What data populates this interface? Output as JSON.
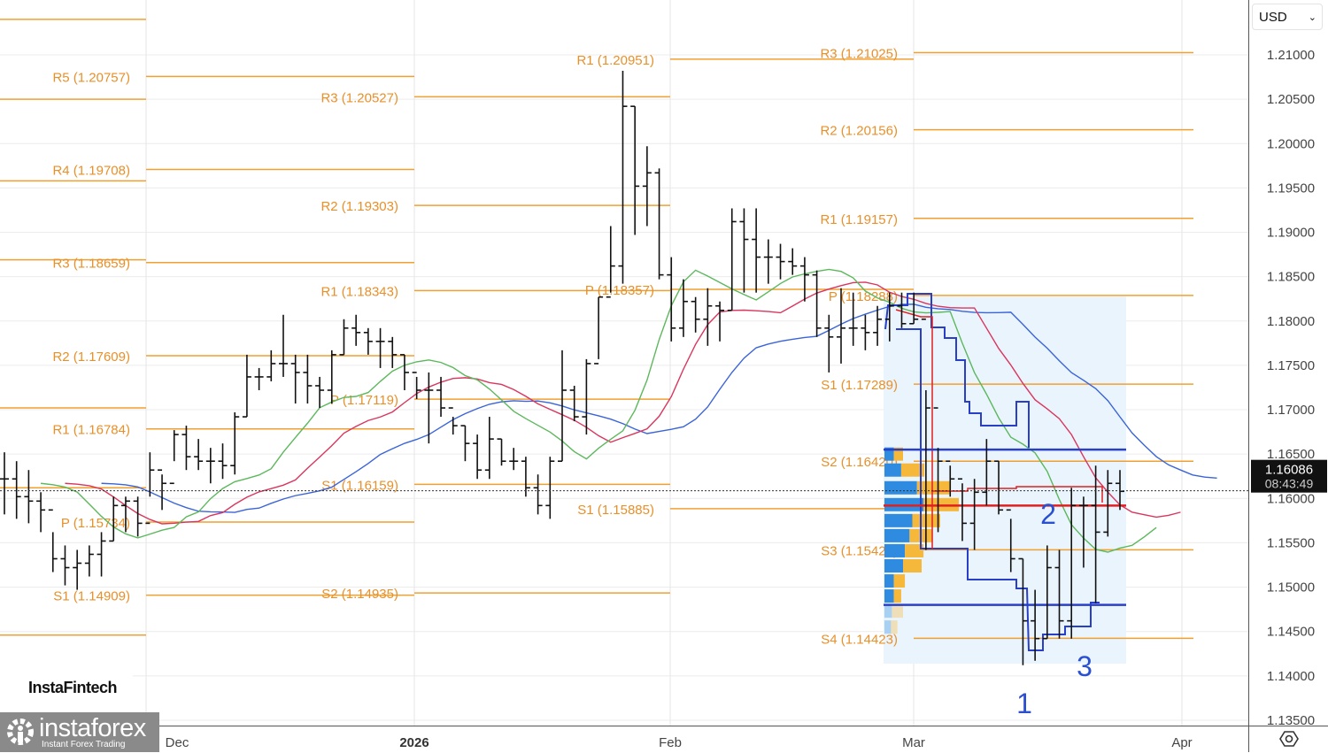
{
  "header": {
    "currency": "USD"
  },
  "colors": {
    "pivot": "#f0a030",
    "bars": "#111111",
    "lips": "#5cb85c",
    "teeth": "#d9365e",
    "jaw": "#3a64d8",
    "channel": "#2a3fc8",
    "poc": "#e02020",
    "vp_blue": "#2f8be0",
    "vp_orange": "#f5b83a",
    "box": "#eaf4fd"
  },
  "logos": {
    "fintech": "InstaFintech",
    "instaforex": "instaforex",
    "instaforex_tag": "Instant Forex Trading"
  },
  "current": {
    "price": "1.16086",
    "countdown": "08:43:49"
  },
  "chart_data": {
    "type": "ohlc",
    "y_ticks": [
      "1.21000",
      "1.20500",
      "1.20000",
      "1.19500",
      "1.19000",
      "1.18500",
      "1.18000",
      "1.17500",
      "1.17000",
      "1.16500",
      "1.16000",
      "1.15500",
      "1.15000",
      "1.14500",
      "1.14000",
      "1.13500"
    ],
    "ylim": [
      1.135,
      1.21
    ],
    "x_ticks": [
      {
        "label": "Dec"
      },
      {
        "label": "2026",
        "bold": true
      },
      {
        "label": "Feb"
      },
      {
        "label": "Mar"
      },
      {
        "label": "Apr"
      }
    ],
    "bars_hlc": [
      [
        1.1652,
        1.1582,
        1.1622
      ],
      [
        1.1642,
        1.1577,
        1.1602
      ],
      [
        1.1632,
        1.1572,
        1.1597
      ],
      [
        1.1607,
        1.1562,
        1.1587
      ],
      [
        1.1562,
        1.1517,
        1.1532
      ],
      [
        1.1547,
        1.1502,
        1.1522
      ],
      [
        1.1542,
        1.1497,
        1.1527
      ],
      [
        1.1547,
        1.1512,
        1.1537
      ],
      [
        1.1562,
        1.1512,
        1.1552
      ],
      [
        1.1602,
        1.1552,
        1.1592
      ],
      [
        1.1602,
        1.1562,
        1.1597
      ],
      [
        1.1602,
        1.1557,
        1.1572
      ],
      [
        1.1652,
        1.1602,
        1.1632
      ],
      [
        1.1627,
        1.1587,
        1.1617
      ],
      [
        1.1677,
        1.1642,
        1.1672
      ],
      [
        1.1682,
        1.1632,
        1.1647
      ],
      [
        1.1667,
        1.1632,
        1.1642
      ],
      [
        1.1657,
        1.1617,
        1.1642
      ],
      [
        1.1662,
        1.1622,
        1.1637
      ],
      [
        1.1697,
        1.1627,
        1.1692
      ],
      [
        1.1762,
        1.1692,
        1.1737
      ],
      [
        1.1747,
        1.1722,
        1.1737
      ],
      [
        1.1767,
        1.1732,
        1.1752
      ],
      [
        1.1807,
        1.1737,
        1.1752
      ],
      [
        1.1762,
        1.1707,
        1.1742
      ],
      [
        1.1762,
        1.1707,
        1.1727
      ],
      [
        1.1737,
        1.1702,
        1.1722
      ],
      [
        1.1767,
        1.1707,
        1.1762
      ],
      [
        1.1802,
        1.1762,
        1.1792
      ],
      [
        1.1807,
        1.1772,
        1.1787
      ],
      [
        1.1792,
        1.1762,
        1.1777
      ],
      [
        1.1792,
        1.1747,
        1.1777
      ],
      [
        1.1782,
        1.1747,
        1.1762
      ],
      [
        1.1762,
        1.1722,
        1.1742
      ],
      [
        1.1737,
        1.1712,
        1.1722
      ],
      [
        1.1742,
        1.1662,
        1.1722
      ],
      [
        1.1737,
        1.1692,
        1.1702
      ],
      [
        1.1692,
        1.1672,
        1.1682
      ],
      [
        1.1682,
        1.1642,
        1.1662
      ],
      [
        1.1672,
        1.1622,
        1.1632
      ],
      [
        1.1692,
        1.1622,
        1.1667
      ],
      [
        1.1667,
        1.1637,
        1.1642
      ],
      [
        1.1657,
        1.1632,
        1.1642
      ],
      [
        1.1647,
        1.1602,
        1.1612
      ],
      [
        1.1627,
        1.1582,
        1.1592
      ],
      [
        1.1647,
        1.1577,
        1.1642
      ],
      [
        1.1767,
        1.1642,
        1.1722
      ],
      [
        1.1727,
        1.1687,
        1.1692
      ],
      [
        1.1757,
        1.1672,
        1.1752
      ],
      [
        1.1827,
        1.1757,
        1.1827
      ],
      [
        1.1907,
        1.1832,
        1.1862
      ],
      [
        1.2082,
        1.1842,
        1.2042
      ],
      [
        1.2042,
        1.1897,
        1.1952
      ],
      [
        1.1997,
        1.1907,
        1.1967
      ],
      [
        1.1972,
        1.1847,
        1.1852
      ],
      [
        1.1872,
        1.1777,
        1.1792
      ],
      [
        1.1847,
        1.1782,
        1.1822
      ],
      [
        1.1827,
        1.1787,
        1.1802
      ],
      [
        1.1837,
        1.1772,
        1.1817
      ],
      [
        1.1822,
        1.1777,
        1.1812
      ],
      [
        1.1927,
        1.1812,
        1.1912
      ],
      [
        1.1927,
        1.1832,
        1.1892
      ],
      [
        1.1927,
        1.1832,
        1.1872
      ],
      [
        1.1892,
        1.1842,
        1.1872
      ],
      [
        1.1887,
        1.1847,
        1.1867
      ],
      [
        1.1882,
        1.1852,
        1.1862
      ],
      [
        1.1872,
        1.1822,
        1.1852
      ],
      [
        1.1857,
        1.1782,
        1.1792
      ],
      [
        1.1807,
        1.1742,
        1.1782
      ],
      [
        1.1837,
        1.1752,
        1.1792
      ],
      [
        1.1832,
        1.1772,
        1.1792
      ],
      [
        1.1807,
        1.1767,
        1.1787
      ],
      [
        1.1817,
        1.1772,
        1.1802
      ],
      [
        1.1832,
        1.1777,
        1.1817
      ],
      [
        1.1832,
        1.1792,
        1.1797
      ],
      [
        1.1832,
        1.1797,
        1.1802
      ],
      [
        1.1722,
        1.1542,
        1.1702
      ],
      [
        1.1657,
        1.1562,
        1.1642
      ],
      [
        1.1637,
        1.1602,
        1.1622
      ],
      [
        1.1617,
        1.1552,
        1.1572
      ],
      [
        1.1622,
        1.1542,
        1.1607
      ],
      [
        1.1667,
        1.1592,
        1.1642
      ],
      [
        1.1642,
        1.1582,
        1.1587
      ],
      [
        1.1577,
        1.1517,
        1.1532
      ],
      [
        1.1532,
        1.1412,
        1.1462
      ],
      [
        1.1497,
        1.1417,
        1.1442
      ],
      [
        1.1547,
        1.1442,
        1.1522
      ],
      [
        1.1542,
        1.1442,
        1.1462
      ],
      [
        1.1612,
        1.1442,
        1.1592
      ],
      [
        1.1602,
        1.1522,
        1.1592
      ],
      [
        1.1637,
        1.1482,
        1.1562
      ],
      [
        1.1632,
        1.1557,
        1.1617
      ],
      [
        1.1632,
        1.1587,
        1.1608
      ]
    ],
    "alligator": {
      "jaw": {
        "period": 13,
        "shift": 8
      },
      "teeth": {
        "period": 8,
        "shift": 5
      },
      "lips": {
        "period": 5,
        "shift": 3
      }
    },
    "pivot_periods": [
      {
        "levels": [
          {
            "value": 1.214
          },
          {
            "value": 1.205
          },
          {
            "value": 1.1958
          },
          {
            "value": 1.1869
          },
          {
            "value": 1.1702
          },
          {
            "value": 1.1612
          },
          {
            "value": 1.1446
          }
        ]
      },
      {
        "levels": [
          {
            "label": "R5 (1.20757)",
            "value": 1.20757
          },
          {
            "label": "R4 (1.19708)",
            "value": 1.19708
          },
          {
            "label": "R3 (1.18659)",
            "value": 1.18659
          },
          {
            "label": "R2 (1.17609)",
            "value": 1.17609
          },
          {
            "label": "R1 (1.16784)",
            "value": 1.16784
          },
          {
            "label": "P (1.15734)",
            "value": 1.15734
          },
          {
            "label": "S1 (1.14909)",
            "value": 1.14909
          }
        ]
      },
      {
        "levels": [
          {
            "label": "R3 (1.20527)",
            "value": 1.20527
          },
          {
            "label": "R2 (1.19303)",
            "value": 1.19303
          },
          {
            "label": "R1 (1.18343)",
            "value": 1.18343
          },
          {
            "label": "P (1.17119)",
            "value": 1.17119
          },
          {
            "label": "S1 (1.16159)",
            "value": 1.16159
          },
          {
            "label": "S2 (1.14935)",
            "value": 1.14935
          }
        ]
      },
      {
        "levels": [
          {
            "label": "R1 (1.20951)",
            "value": 1.20951
          },
          {
            "label": "P (1.18357)",
            "value": 1.18357
          },
          {
            "label": "S1 (1.15885)",
            "value": 1.15885
          }
        ]
      },
      {
        "levels": [
          {
            "label": "R3 (1.21025)",
            "value": 1.21025
          },
          {
            "label": "R2 (1.20156)",
            "value": 1.20156
          },
          {
            "label": "R1 (1.19157)",
            "value": 1.19157
          },
          {
            "label": "P (1.18288)",
            "value": 1.18288
          },
          {
            "label": "S1 (1.17289)",
            "value": 1.17289
          },
          {
            "label": "S2 (1.16420)",
            "value": 1.1642
          },
          {
            "label": "S3 (1.15421)",
            "value": 1.15421
          },
          {
            "label": "S4 (1.14423)",
            "value": 1.14423
          }
        ]
      }
    ],
    "range_box": {
      "high": 1.1655,
      "low": 1.148,
      "poc": 1.1592
    },
    "volume_profile": [
      {
        "price": 1.165,
        "blue": 10,
        "orange": 10
      },
      {
        "price": 1.1632,
        "blue": 18,
        "orange": 25
      },
      {
        "price": 1.1612,
        "blue": 35,
        "orange": 35
      },
      {
        "price": 1.1593,
        "blue": 42,
        "orange": 38
      },
      {
        "price": 1.1575,
        "blue": 30,
        "orange": 30
      },
      {
        "price": 1.1558,
        "blue": 27,
        "orange": 25
      },
      {
        "price": 1.1541,
        "blue": 22,
        "orange": 20
      },
      {
        "price": 1.1524,
        "blue": 20,
        "orange": 20
      },
      {
        "price": 1.1507,
        "blue": 10,
        "orange": 12
      },
      {
        "price": 1.149,
        "blue": 10,
        "orange": 8
      },
      {
        "price": 1.1473,
        "blue": 8,
        "orange": 12,
        "faint": true
      },
      {
        "price": 1.1455,
        "blue": 7,
        "orange": 7,
        "faint": true
      }
    ],
    "annotations": [
      {
        "text": "1"
      },
      {
        "text": "2"
      },
      {
        "text": "3"
      }
    ]
  }
}
